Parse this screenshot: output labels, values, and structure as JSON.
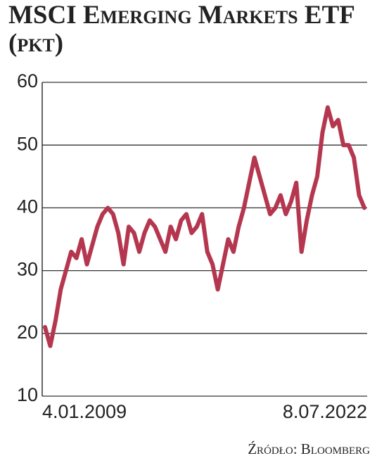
{
  "chart_data": {
    "type": "line",
    "title": "MSCI Emerging Markets ETF (pkt)",
    "source": "Źródło: Bloomberg",
    "categories": [
      "4.01.2009",
      null,
      null,
      null,
      null,
      null,
      null,
      null,
      null,
      null,
      null,
      null,
      null,
      null,
      null,
      null,
      null,
      null,
      null,
      null,
      null,
      null,
      null,
      null,
      null,
      null,
      null,
      null,
      null,
      null,
      null,
      null,
      null,
      null,
      null,
      null,
      null,
      null,
      null,
      null,
      null,
      null,
      null,
      null,
      null,
      null,
      null,
      null,
      null,
      null,
      null,
      null,
      null,
      null,
      null,
      null,
      null,
      null,
      null,
      null,
      null,
      "8.07.2022"
    ],
    "series": [
      {
        "name": "MSCI Emerging Markets ETF",
        "color": "#b5374f",
        "values": [
          21,
          18,
          22,
          27,
          30,
          33,
          32,
          35,
          31,
          34,
          37,
          39,
          40,
          39,
          36,
          31,
          37,
          36,
          33,
          36,
          38,
          37,
          35,
          33,
          37,
          35,
          38,
          39,
          36,
          37,
          39,
          33,
          31,
          27,
          31,
          35,
          33,
          37,
          40,
          44,
          48,
          45,
          42,
          39,
          40,
          42,
          39,
          41,
          44,
          33,
          38,
          42,
          45,
          52,
          56,
          53,
          54,
          50,
          50,
          48,
          42,
          40
        ]
      }
    ],
    "ylim": [
      10,
      60
    ],
    "yticks": [
      10,
      20,
      30,
      40,
      50,
      60
    ],
    "grid": true
  }
}
